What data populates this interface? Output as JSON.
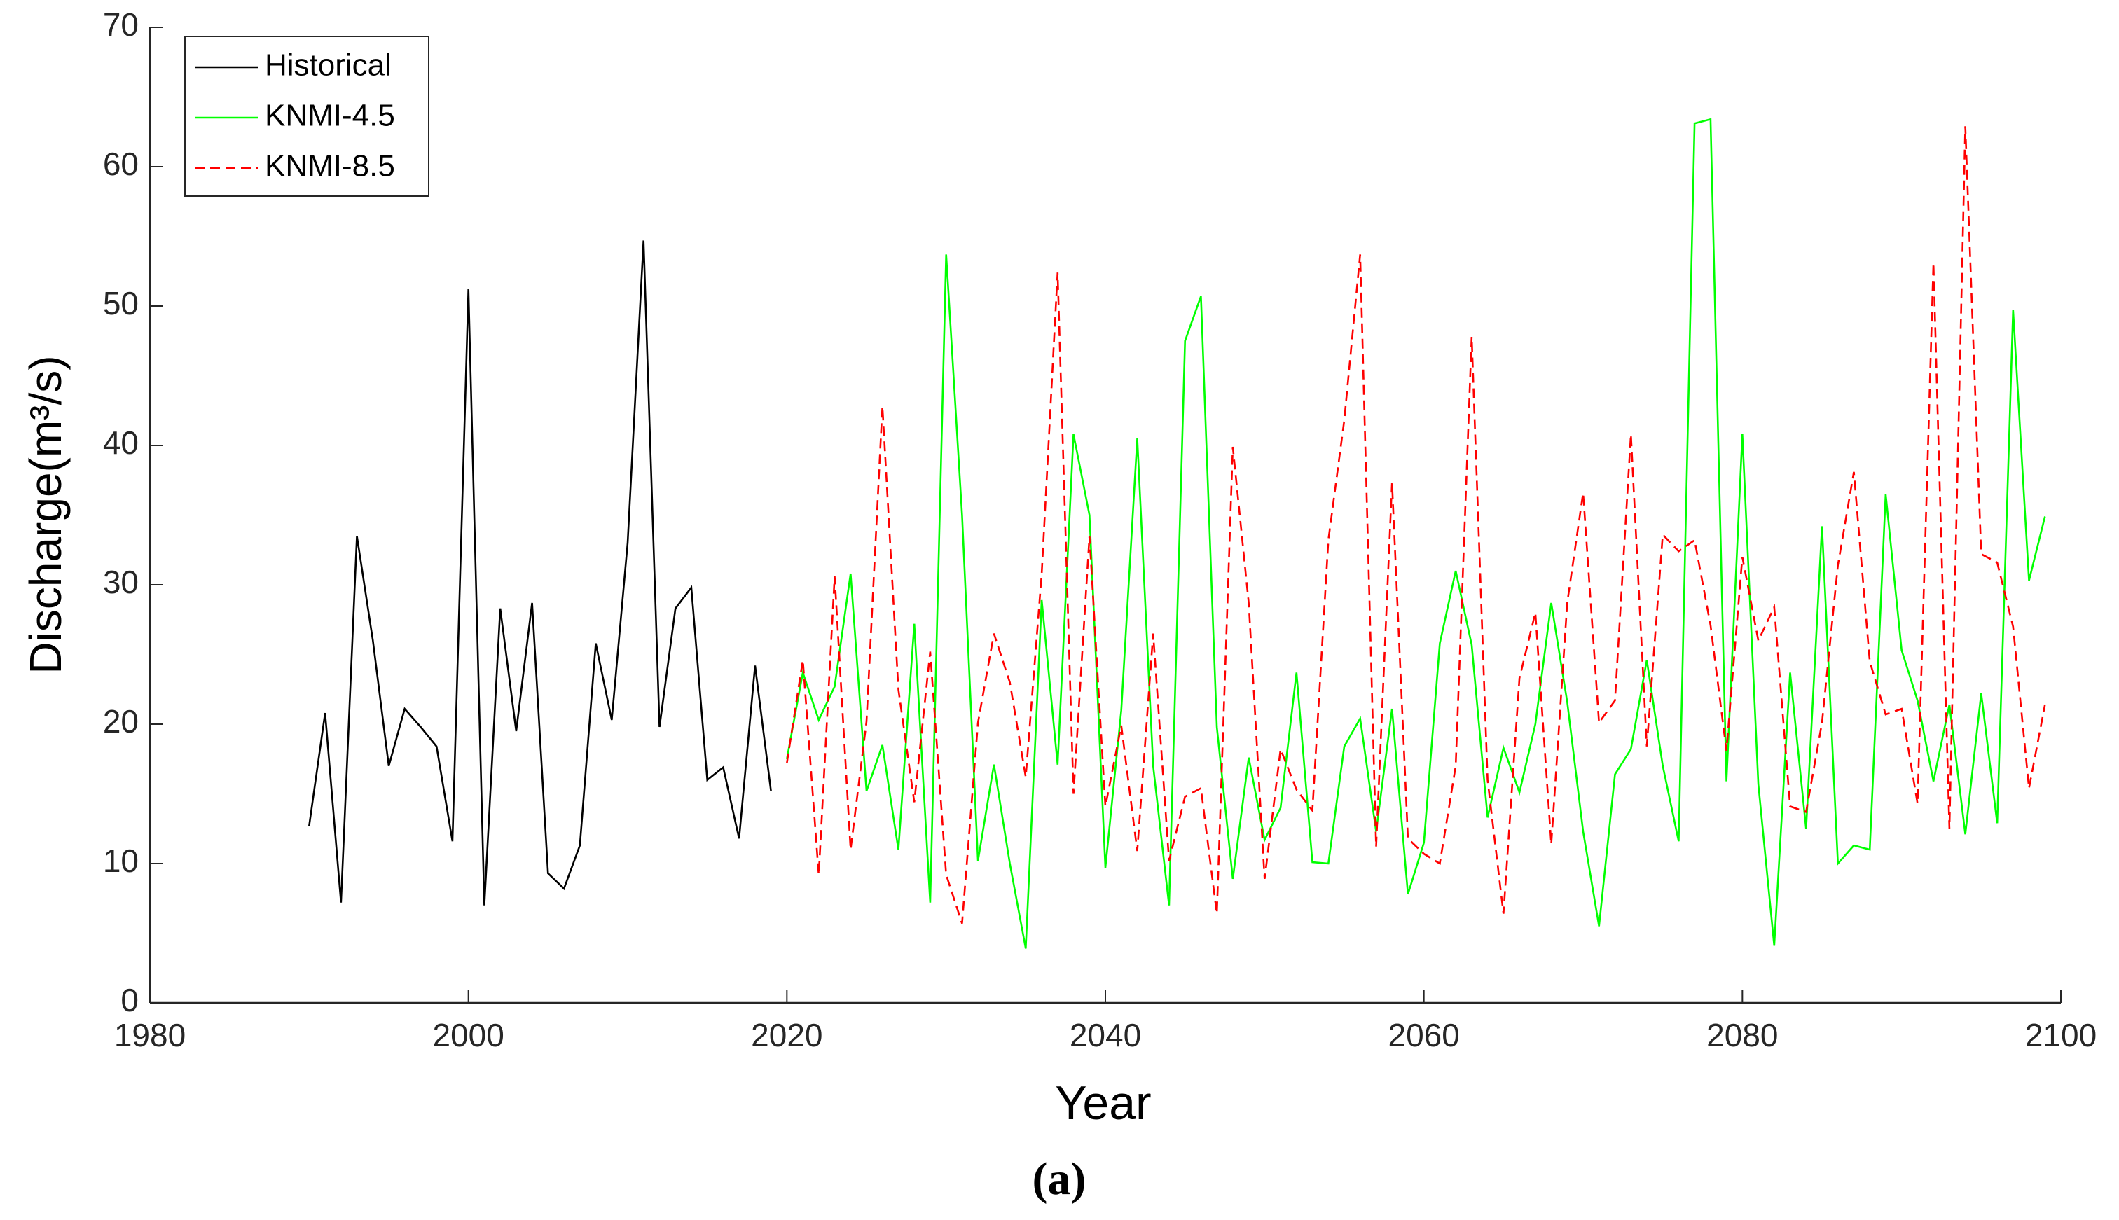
{
  "chart_data": {
    "type": "line",
    "xlabel": "Year",
    "ylabel": "Discharge(m³/s)",
    "caption": "(a)",
    "xlim": [
      1980,
      2100
    ],
    "xticks": [
      1980,
      2000,
      2020,
      2040,
      2060,
      2080,
      2100
    ],
    "ylim": [
      0,
      70
    ],
    "yticks": [
      0,
      10,
      20,
      30,
      40,
      50,
      60,
      70
    ],
    "grid": false,
    "legend": "upper left",
    "series": [
      {
        "name": "Historical",
        "color": "#000000",
        "linestyle": "solid",
        "x": [
          1990,
          1991,
          1992,
          1993,
          1994,
          1995,
          1996,
          1997,
          1998,
          1999,
          2000,
          2001,
          2002,
          2003,
          2004,
          2005,
          2006,
          2007,
          2008,
          2009,
          2010,
          2011,
          2012,
          2013,
          2014,
          2015,
          2016,
          2017,
          2018,
          2019
        ],
        "values": [
          12.7,
          20.8,
          7.2,
          33.5,
          26,
          17,
          21.1,
          19.8,
          18.4,
          11.6,
          51.2,
          7,
          28.3,
          19.5,
          28.7,
          9.3,
          8.2,
          11.3,
          25.8,
          20.3,
          33,
          54.7,
          19.8,
          28.3,
          29.8,
          16,
          16.9,
          11.8,
          24.2,
          15.2
        ]
      },
      {
        "name": "KNMI-4.5",
        "color": "#00ff00",
        "linestyle": "solid",
        "x": [
          2020,
          2021,
          2022,
          2023,
          2024,
          2025,
          2026,
          2027,
          2028,
          2029,
          2030,
          2031,
          2032,
          2033,
          2034,
          2035,
          2036,
          2037,
          2038,
          2039,
          2040,
          2041,
          2042,
          2043,
          2044,
          2045,
          2046,
          2047,
          2048,
          2049,
          2050,
          2051,
          2052,
          2053,
          2054,
          2055,
          2056,
          2057,
          2058,
          2059,
          2060,
          2061,
          2062,
          2063,
          2064,
          2065,
          2066,
          2067,
          2068,
          2069,
          2070,
          2071,
          2072,
          2073,
          2074,
          2075,
          2076,
          2077,
          2078,
          2079,
          2080,
          2081,
          2082,
          2083,
          2084,
          2085,
          2086,
          2087,
          2088,
          2089,
          2090,
          2091,
          2092,
          2093,
          2094,
          2095,
          2096,
          2097,
          2098,
          2099
        ],
        "values": [
          17.5,
          23.7,
          20.3,
          22.7,
          30.8,
          15.2,
          18.5,
          11,
          27.2,
          7.2,
          53.7,
          35,
          10.2,
          17.1,
          10,
          3.9,
          28.9,
          17.1,
          40.8,
          35,
          9.7,
          21,
          40.5,
          17,
          7,
          47.5,
          50.7,
          19.8,
          8.9,
          17.6,
          11.7,
          14,
          23.7,
          10.1,
          10,
          18.4,
          20.4,
          12.3,
          21.1,
          7.8,
          11.5,
          25.8,
          31,
          25.7,
          13.3,
          18.3,
          15.1,
          20,
          28.7,
          21.6,
          12.3,
          5.5,
          16.4,
          18.2,
          24.6,
          17,
          11.6,
          63.1,
          63.4,
          15.9,
          40.8,
          15.7,
          4.1,
          23.7,
          12.5,
          34.2,
          10,
          11.3,
          11,
          36.5,
          25.3,
          21.7,
          15.9,
          21.4,
          12.1,
          22.2,
          12.9,
          49.7,
          30.3,
          34.9
        ]
      },
      {
        "name": "KNMI-8.5",
        "color": "#ff0000",
        "linestyle": "dashed",
        "x": [
          2020,
          2021,
          2022,
          2023,
          2024,
          2025,
          2026,
          2027,
          2028,
          2029,
          2030,
          2031,
          2032,
          2033,
          2034,
          2035,
          2036,
          2037,
          2038,
          2039,
          2040,
          2041,
          2042,
          2043,
          2044,
          2045,
          2046,
          2047,
          2048,
          2049,
          2050,
          2051,
          2052,
          2053,
          2054,
          2055,
          2056,
          2057,
          2058,
          2059,
          2060,
          2061,
          2062,
          2063,
          2064,
          2065,
          2066,
          2067,
          2068,
          2069,
          2070,
          2071,
          2072,
          2073,
          2074,
          2075,
          2076,
          2077,
          2078,
          2079,
          2080,
          2081,
          2082,
          2083,
          2084,
          2085,
          2086,
          2087,
          2088,
          2089,
          2090,
          2091,
          2092,
          2093,
          2094,
          2095,
          2096,
          2097,
          2098,
          2099
        ],
        "values": [
          17.2,
          24.6,
          9.2,
          30.6,
          11,
          20.2,
          42.8,
          22.5,
          14.4,
          25.2,
          9.2,
          5.7,
          20.1,
          26.5,
          23,
          16.2,
          30.8,
          52.4,
          15,
          33.5,
          14.1,
          19.9,
          10.9,
          26.5,
          10.2,
          14.8,
          15.4,
          6.4,
          39.9,
          28.7,
          8.9,
          18.2,
          15.3,
          13.8,
          33.2,
          41.8,
          53.7,
          11.2,
          37.3,
          11.8,
          10.7,
          10,
          17,
          47.8,
          16,
          6.4,
          23.3,
          28,
          11.4,
          28.7,
          36.6,
          20.1,
          21.7,
          40.8,
          18.4,
          33.6,
          32.4,
          33.2,
          27.1,
          18.1,
          32,
          26,
          28.4,
          14.1,
          13.7,
          20.1,
          31.4,
          38.1,
          24.5,
          20.7,
          21.1,
          14.3,
          53.1,
          12.5,
          62.9,
          32.2,
          31.6,
          27,
          15.4,
          21.4
        ]
      }
    ]
  }
}
